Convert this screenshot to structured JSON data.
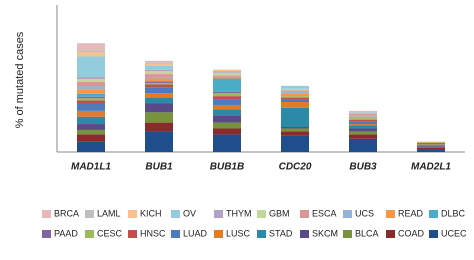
{
  "chart_data": {
    "type": "stacked-bar",
    "y_label": "% of mutated cases",
    "categories": [
      "MAD1L1",
      "BUB1",
      "BUB1B",
      "CDC20",
      "BUB3",
      "MAD2L1"
    ],
    "ylim": [
      0,
      50
    ],
    "series": [
      {
        "name": "BRCA",
        "color": "#e6b9b8",
        "values": [
          2.5,
          0.5,
          0,
          0,
          0.5,
          0
        ]
      },
      {
        "name": "LAML",
        "color": "#bfbfbf",
        "values": [
          0.5,
          0.5,
          0,
          0,
          0,
          0
        ]
      },
      {
        "name": "KICH",
        "color": "#fac090",
        "values": [
          1.5,
          0.5,
          0.5,
          0,
          0,
          0
        ]
      },
      {
        "name": "OV",
        "color": "#93cddd",
        "values": [
          7,
          1.5,
          0,
          1,
          0.5,
          0
        ]
      },
      {
        "name": "THYM",
        "color": "#b3a2c7",
        "values": [
          0.7,
          0.5,
          0.5,
          0,
          0,
          0
        ]
      },
      {
        "name": "GBM",
        "color": "#c3d69b",
        "values": [
          1,
          1,
          1,
          0.5,
          0,
          0
        ]
      },
      {
        "name": "ESCA",
        "color": "#d99694",
        "values": [
          1.5,
          1,
          0.5,
          0.5,
          0.5,
          0
        ]
      },
      {
        "name": "UCS",
        "color": "#95b3d7",
        "values": [
          1,
          0.5,
          0,
          0.5,
          0.5,
          0
        ]
      },
      {
        "name": "READ",
        "color": "#f79646",
        "values": [
          1.5,
          1,
          0.5,
          1,
          0.5,
          0.2
        ]
      },
      {
        "name": "DLBC",
        "color": "#4bacc6",
        "values": [
          1,
          0,
          4.5,
          0,
          0,
          0
        ]
      },
      {
        "name": "PAAD",
        "color": "#8064a2",
        "values": [
          0.5,
          0.5,
          0.5,
          0,
          0,
          0
        ]
      },
      {
        "name": "CESC",
        "color": "#9bbb59",
        "values": [
          0.8,
          0.5,
          1,
          0.5,
          0.5,
          0.2
        ]
      },
      {
        "name": "HNSC",
        "color": "#c0504d",
        "values": [
          1,
          1,
          1,
          0.5,
          0.5,
          0.2
        ]
      },
      {
        "name": "LUAD",
        "color": "#4a7cbf",
        "values": [
          2.5,
          2,
          2,
          1,
          1,
          0.3
        ]
      },
      {
        "name": "LUSC",
        "color": "#e07b28",
        "values": [
          2,
          1.5,
          1.5,
          2,
          0.5,
          0.2
        ]
      },
      {
        "name": "STAD",
        "color": "#2a8aa8",
        "values": [
          2.5,
          2,
          2,
          6.5,
          1,
          0.3
        ]
      },
      {
        "name": "SKCM",
        "color": "#5b4a8a",
        "values": [
          2,
          3,
          2.5,
          0.5,
          1,
          0.3
        ]
      },
      {
        "name": "BLCA",
        "color": "#77933c",
        "values": [
          1.5,
          3.5,
          2,
          1,
          1,
          0.3
        ]
      },
      {
        "name": "COAD",
        "color": "#8b2a2a",
        "values": [
          2.5,
          3,
          2,
          1.5,
          1.5,
          0.5
        ]
      },
      {
        "name": "UCEC",
        "color": "#1f4e8c",
        "values": [
          3.5,
          7,
          6,
          5.5,
          4.5,
          1
        ]
      }
    ]
  }
}
